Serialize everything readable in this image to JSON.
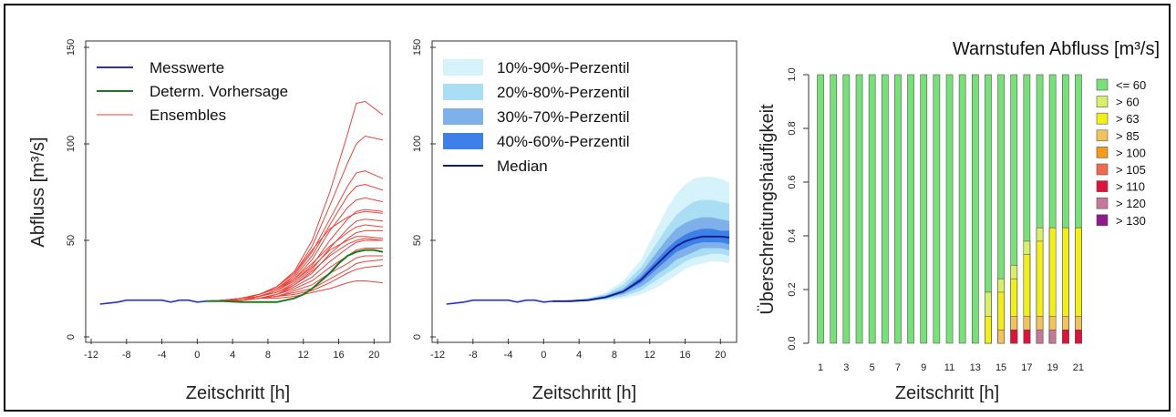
{
  "chart_data": [
    {
      "type": "line",
      "xlabel": "Zeitschritt [h]",
      "ylabel": "Abfluss [m³/s]",
      "xlim": [
        -12,
        21
      ],
      "ylim": [
        0,
        150
      ],
      "xticks": [
        "-12",
        "-8",
        "-4",
        "0",
        "4",
        "8",
        "12",
        "16",
        "20"
      ],
      "yticks": [
        "0",
        "50",
        "100",
        "150"
      ],
      "legend": {
        "position": "top-left",
        "labels": [
          "Messwerte",
          "Determ. Vorhersage",
          "Ensembles"
        ]
      },
      "colors": {
        "messwerte": "#2b2bd6",
        "determ": "#1f7a1f",
        "ensembles": "#e8453c"
      },
      "series": [
        {
          "name": "Messwerte",
          "x": [
            -11,
            -10,
            -9,
            -8,
            -7,
            -6,
            -5,
            -4,
            -3,
            -2,
            -1,
            0,
            1
          ],
          "values": [
            17,
            17.5,
            18,
            19,
            19,
            19,
            19,
            19,
            18,
            19,
            19,
            18,
            18.5
          ]
        },
        {
          "name": "Determ. Vorhersage",
          "x": [
            1,
            3,
            5,
            7,
            9,
            11,
            12,
            13,
            14,
            15,
            16,
            17,
            18,
            19,
            20,
            21
          ],
          "values": [
            18.5,
            18.5,
            18,
            18,
            18,
            20,
            22,
            25,
            29,
            33,
            38,
            42,
            44,
            45,
            45,
            44
          ]
        },
        {
          "name": "Ensembles",
          "x": [
            1,
            3,
            5,
            7,
            9,
            11,
            13,
            15,
            17,
            18,
            19,
            21
          ],
          "members": [
            [
              18.5,
              19,
              20,
              22,
              26,
              34,
              50,
              75,
              105,
              121,
              122,
              115
            ],
            [
              18.5,
              19,
              20,
              22,
              26,
              33,
              47,
              68,
              90,
              100,
              104,
              102
            ],
            [
              18.5,
              19,
              20,
              22,
              25,
              32,
              44,
              61,
              78,
              85,
              86,
              82
            ],
            [
              18.5,
              19,
              20,
              22,
              25,
              31,
              42,
              58,
              73,
              78,
              79,
              76
            ],
            [
              18.5,
              19,
              20,
              21,
              24,
              30,
              40,
              55,
              67,
              71,
              72,
              70
            ],
            [
              18.5,
              19,
              20,
              21,
              24,
              29,
              37,
              50,
              61,
              65,
              66,
              65
            ],
            [
              18.5,
              19,
              19,
              21,
              23,
              28,
              35,
              46,
              56,
              60,
              61,
              60
            ],
            [
              18.5,
              19,
              19,
              21,
              23,
              27,
              33,
              43,
              51,
              54,
              55,
              55
            ],
            [
              18.5,
              19,
              19,
              20,
              22,
              26,
              31,
              39,
              46,
              49,
              50,
              50
            ],
            [
              18.5,
              19,
              19,
              20,
              22,
              25,
              29,
              36,
              42,
              45,
              46,
              46
            ],
            [
              18.5,
              19,
              19,
              20,
              21,
              24,
              27,
              33,
              38,
              41,
              42,
              42
            ],
            [
              18.5,
              19,
              19,
              20,
              21,
              23,
              25,
              30,
              35,
              38,
              39,
              40
            ],
            [
              18.5,
              19,
              19,
              20,
              21,
              22,
              24,
              28,
              33,
              35,
              36,
              37
            ],
            [
              18.5,
              19,
              19,
              20,
              20,
              21,
              23,
              25,
              28,
              29,
              29,
              28
            ],
            [
              18.5,
              19,
              20,
              22,
              25,
              30,
              38,
              47,
              54,
              57,
              58,
              57
            ],
            [
              18.5,
              19,
              20,
              22,
              26,
              33,
              45,
              56,
              62,
              64,
              65,
              64
            ],
            [
              18.5,
              19,
              20,
              21,
              24,
              29,
              36,
              45,
              50,
              52,
              52,
              51
            ],
            [
              18.5,
              19,
              19,
              20,
              22,
              27,
              34,
              42,
              48,
              50,
              51,
              50
            ]
          ]
        }
      ]
    },
    {
      "type": "area",
      "xlabel": "Zeitschritt [h]",
      "ylabel": "",
      "xlim": [
        -12,
        21
      ],
      "ylim": [
        0,
        150
      ],
      "xticks": [
        "-12",
        "-8",
        "-4",
        "0",
        "4",
        "8",
        "12",
        "16",
        "20"
      ],
      "yticks": [
        "0",
        "50",
        "100",
        "150"
      ],
      "legend": {
        "position": "top-left",
        "labels": [
          "10%-90%-Perzentil",
          "20%-80%-Perzentil",
          "30%-70%-Perzentil",
          "40%-60%-Perzentil",
          "Median"
        ]
      },
      "colors": {
        "p10_90": "#d6f3fb",
        "p20_80": "#a9def5",
        "p30_70": "#7fb0ea",
        "p40_60": "#3d80e8",
        "median": "#0d1a8a",
        "messwerte": "#2b2bd6"
      },
      "x": [
        1,
        3,
        5,
        7,
        9,
        11,
        12,
        13,
        14,
        15,
        16,
        17,
        18,
        19,
        20,
        21
      ],
      "messwerte": {
        "x": [
          -11,
          -10,
          -9,
          -8,
          -7,
          -6,
          -5,
          -4,
          -3,
          -2,
          -1,
          0,
          1
        ],
        "values": [
          17,
          17.5,
          18,
          19,
          19,
          19,
          19,
          19,
          18,
          19,
          19,
          18,
          18.5
        ]
      },
      "bands": [
        {
          "name": "10%-90%-Perzentil",
          "lower": [
            18.5,
            18.5,
            18.5,
            19,
            20,
            22,
            24,
            26,
            29,
            32,
            35,
            37,
            38,
            39,
            39,
            38
          ],
          "upper": [
            18.5,
            19,
            20,
            23,
            29,
            40,
            49,
            58,
            67,
            74,
            79,
            82,
            83,
            83,
            82,
            80
          ]
        },
        {
          "name": "20%-80%-Perzentil",
          "lower": [
            18.5,
            18.5,
            18.5,
            19.5,
            21,
            24,
            27,
            30,
            33,
            36,
            39,
            41,
            42,
            43,
            43,
            42
          ],
          "upper": [
            18.5,
            19,
            20,
            22,
            27,
            36,
            43,
            50,
            57,
            63,
            67,
            70,
            71,
            71,
            70,
            69
          ]
        },
        {
          "name": "30%-70%-Perzentil",
          "lower": [
            18.5,
            18.5,
            19,
            20,
            22,
            26,
            29,
            33,
            36,
            40,
            42,
            44,
            46,
            46,
            46,
            45
          ],
          "upper": [
            18.5,
            19,
            19.5,
            21.5,
            25,
            33,
            39,
            45,
            51,
            56,
            59,
            61,
            62,
            62,
            61,
            60
          ]
        },
        {
          "name": "40%-60%-Perzentil",
          "lower": [
            18.5,
            18.5,
            19,
            20,
            23,
            28,
            32,
            36,
            40,
            44,
            46,
            48,
            49,
            49,
            49,
            48
          ],
          "upper": [
            18.5,
            19,
            19.5,
            21,
            24,
            31,
            36,
            41,
            46,
            50,
            53,
            55,
            56,
            56,
            55,
            55
          ]
        }
      ],
      "median": {
        "name": "Median",
        "values": [
          18.5,
          18.5,
          19,
          20.5,
          23.5,
          29.5,
          34,
          38.5,
          43,
          47,
          49.5,
          51,
          52,
          52,
          52,
          51.5
        ]
      }
    },
    {
      "type": "bar",
      "title": "Warnstufen Abfluss [m³/s]",
      "xlabel": "Zeitschritt [h]",
      "ylabel": "Überschreitungshäufigkeit",
      "ylim": [
        0,
        1
      ],
      "yticks": [
        "0.0",
        "0.2",
        "0.4",
        "0.6",
        "0.8",
        "1.0"
      ],
      "categories": [
        "1",
        "2",
        "3",
        "4",
        "5",
        "6",
        "7",
        "8",
        "9",
        "10",
        "11",
        "12",
        "13",
        "14",
        "15",
        "16",
        "17",
        "18",
        "19",
        "20",
        "21"
      ],
      "xtick_labels": [
        "1",
        "3",
        "5",
        "7",
        "9",
        "11",
        "13",
        "15",
        "17",
        "19",
        "21"
      ],
      "legend": {
        "position": "right"
      },
      "series": [
        {
          "name": "<= 60",
          "color": "#77e079",
          "values": [
            1,
            1,
            1,
            1,
            1,
            1,
            1,
            1,
            1,
            1,
            1,
            1,
            1,
            1,
            1,
            1,
            1,
            1,
            1,
            1,
            1
          ]
        },
        {
          "name": "> 60",
          "color": "#d8ef6a",
          "values": [
            0,
            0,
            0,
            0,
            0,
            0,
            0,
            0,
            0,
            0,
            0,
            0,
            0,
            0.19,
            0.24,
            0.29,
            0.38,
            0.43,
            0.43,
            0.43,
            0.43
          ]
        },
        {
          "name": "> 63",
          "color": "#f2ee1a",
          "values": [
            0,
            0,
            0,
            0,
            0,
            0,
            0,
            0,
            0,
            0,
            0,
            0,
            0,
            0.1,
            0.19,
            0.24,
            0.33,
            0.38,
            0.43,
            0.43,
            0.43
          ]
        },
        {
          "name": "> 85",
          "color": "#f2c35a",
          "values": [
            0,
            0,
            0,
            0,
            0,
            0,
            0,
            0,
            0,
            0,
            0,
            0,
            0,
            0,
            0.05,
            0.1,
            0.1,
            0.1,
            0.1,
            0.1,
            0.1
          ]
        },
        {
          "name": "> 100",
          "color": "#f59a1a",
          "values": [
            0,
            0,
            0,
            0,
            0,
            0,
            0,
            0,
            0,
            0,
            0,
            0,
            0,
            0,
            0,
            0.05,
            0.05,
            0.05,
            0.05,
            0.05,
            0.05
          ]
        },
        {
          "name": "> 105",
          "color": "#f06a50",
          "values": [
            0,
            0,
            0,
            0,
            0,
            0,
            0,
            0,
            0,
            0,
            0,
            0,
            0,
            0,
            0,
            0.05,
            0.05,
            0.05,
            0.05,
            0.05,
            0.05
          ]
        },
        {
          "name": "> 110",
          "color": "#e0123c",
          "values": [
            0,
            0,
            0,
            0,
            0,
            0,
            0,
            0,
            0,
            0,
            0,
            0,
            0,
            0,
            0,
            0.05,
            0.05,
            0.05,
            0.05,
            0.05,
            0.05
          ]
        },
        {
          "name": "> 120",
          "color": "#c57898",
          "values": [
            0,
            0,
            0,
            0,
            0,
            0,
            0,
            0,
            0,
            0,
            0,
            0,
            0,
            0,
            0,
            0,
            0,
            0.05,
            0.05,
            0,
            0
          ]
        },
        {
          "name": "> 130",
          "color": "#8e1a8c",
          "values": [
            0,
            0,
            0,
            0,
            0,
            0,
            0,
            0,
            0,
            0,
            0,
            0,
            0,
            0,
            0,
            0,
            0,
            0,
            0,
            0,
            0
          ]
        }
      ]
    }
  ]
}
